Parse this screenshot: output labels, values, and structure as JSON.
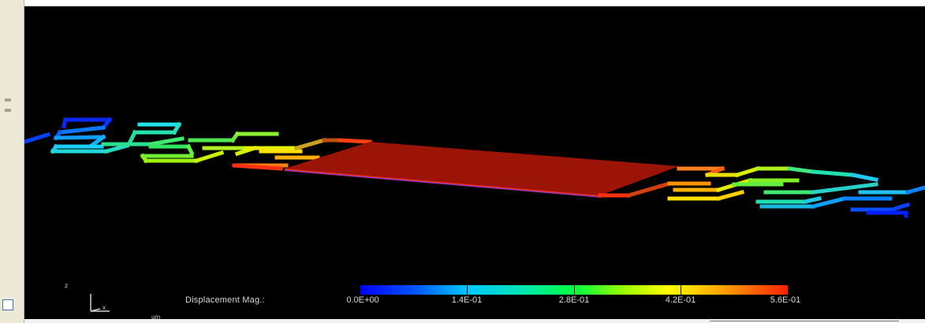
{
  "legend": {
    "label": "Displacement Mag.:",
    "ticks": [
      "0.0E+00",
      "1.4E-01",
      "2.8E-01",
      "4.2E-01",
      "5.6E-01"
    ]
  },
  "axes": {
    "z": "z",
    "x": "x"
  },
  "units": "um",
  "colors": {
    "background": "#000000",
    "plate": "#a61a0a",
    "low": "#0000ff",
    "high": "#ff2000"
  },
  "icons": [
    "axis-triad-icon"
  ]
}
